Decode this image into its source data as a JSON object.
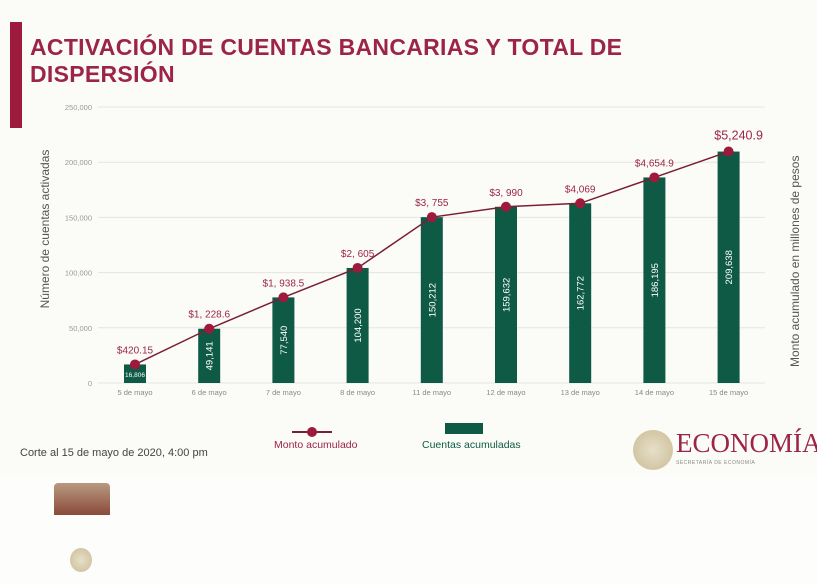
{
  "title": "ACTIVACIÓN DE CUENTAS BANCARIAS Y TOTAL DE DISPERSIÓN",
  "footnote": "Corte al 15 de mayo de 2020, 4:00 pm",
  "logo": {
    "name": "ECONOMÍA",
    "subtitle": "SECRETARÍA DE ECONOMÍA"
  },
  "chart_data": {
    "type": "bar+line",
    "categories": [
      "5 de mayo",
      "6 de mayo",
      "7 de mayo",
      "8 de mayo",
      "11 de mayo",
      "12 de mayo",
      "13 de mayo",
      "14 de mayo",
      "15 de mayo"
    ],
    "ylabel": "Número de cuentas activadas",
    "y2label": "Monto acumulado en millones de pesos",
    "ylim": [
      0,
      250000
    ],
    "yticks": [
      "0",
      "50,000",
      "100,000",
      "150,000",
      "200,000",
      "250,000"
    ],
    "grid": true,
    "legend_position": "bottom",
    "series": [
      {
        "name": "Cuentas acumuladas",
        "type": "bar",
        "color": "#0f5a45",
        "values": [
          16806,
          49141,
          77540,
          104200,
          150212,
          159632,
          162772,
          186195,
          209638
        ],
        "labels": [
          "16,806",
          "49,141",
          "77,540",
          "104,200",
          "150,212",
          "159,632",
          "162,772",
          "186,195",
          "209,638"
        ]
      },
      {
        "name": "Monto acumulado",
        "type": "line",
        "color": "#7a1f35",
        "values": [
          420.15,
          1228.6,
          1938.5,
          2605,
          3755,
          3990,
          4069,
          4654.9,
          5240.9
        ],
        "labels": [
          "$420.15",
          "$1, 228.6",
          "$1, 938.5",
          "$2, 605",
          "$3, 755",
          "$3, 990",
          "$4,069",
          "$4,654.9",
          "$5,240.9"
        ]
      }
    ]
  }
}
